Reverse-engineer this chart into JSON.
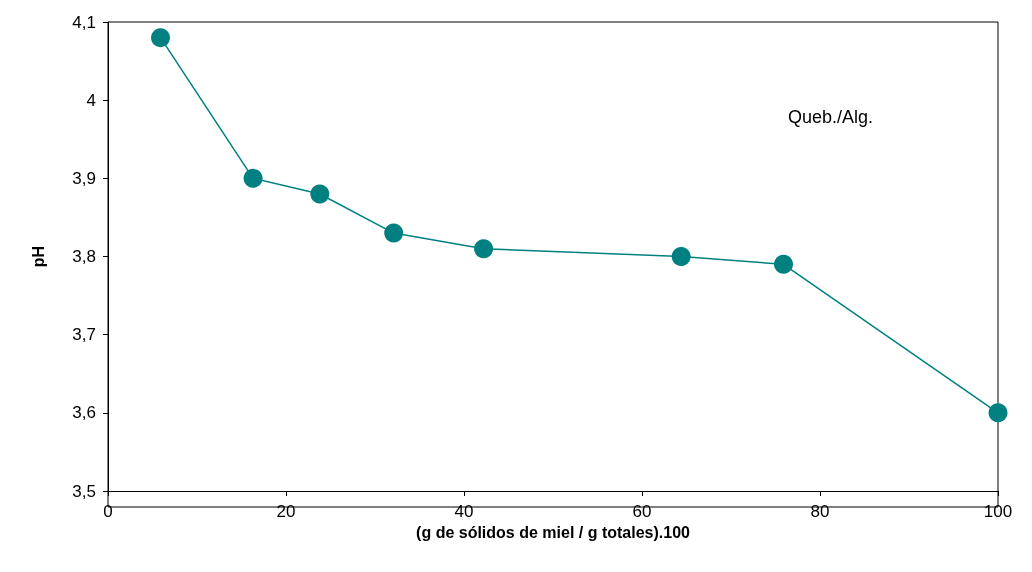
{
  "chart_data": {
    "type": "line",
    "xlabel": "(g de sólidos de miel / g totales).100",
    "ylabel": "pH",
    "x": [
      5.9,
      16.3,
      23.8,
      32.1,
      42.2,
      64.4,
      75.9,
      100
    ],
    "series": [
      {
        "color": "#008080",
        "values": [
          4.08,
          3.9,
          3.88,
          3.83,
          3.81,
          3.8,
          3.79,
          3.6
        ]
      }
    ],
    "xlim": [
      0,
      100
    ],
    "xticks": [
      0,
      20,
      40,
      60,
      80,
      100
    ],
    "ylim": [
      3.5,
      4.1
    ],
    "yticks": [
      {
        "value": 3.5,
        "label": "3,5"
      },
      {
        "value": 3.6,
        "label": "3,6"
      },
      {
        "value": 3.7,
        "label": "3,7"
      },
      {
        "value": 3.8,
        "label": "3,8"
      },
      {
        "value": 3.9,
        "label": "3,9"
      },
      {
        "value": 4,
        "label": "4"
      },
      {
        "value": 4.1,
        "label": "4,1"
      }
    ],
    "annotations": [
      "Queb./Alg."
    ],
    "grid": false,
    "marker": "circle",
    "line_style": "solid"
  }
}
